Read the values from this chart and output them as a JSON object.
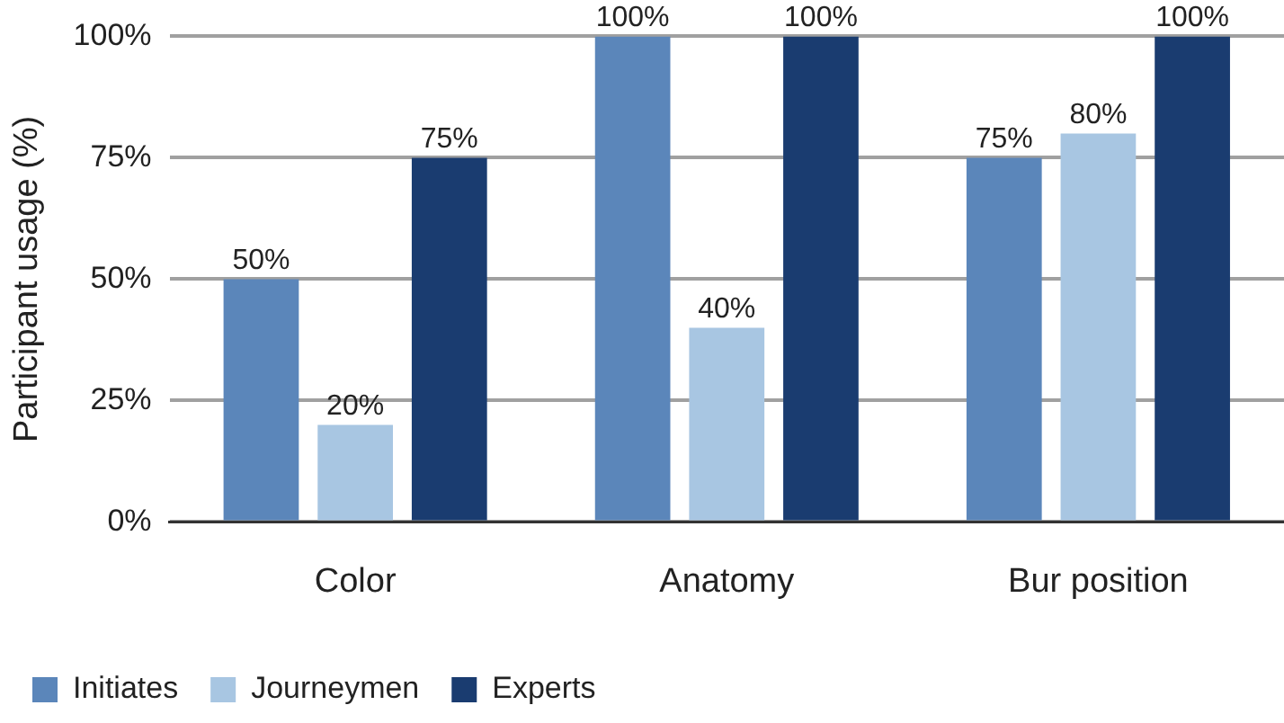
{
  "chart_data": {
    "type": "bar",
    "ylabel": "Participant usage (%)",
    "categories": [
      "Color",
      "Anatomy",
      "Bur position"
    ],
    "series": [
      {
        "name": "Initiates",
        "color": "#5b86ba",
        "values": [
          50,
          100,
          75
        ],
        "value_labels": [
          "50%",
          "100%",
          "75%"
        ]
      },
      {
        "name": "Journeymen",
        "color": "#a8c6e2",
        "values": [
          20,
          40,
          80
        ],
        "value_labels": [
          "20%",
          "40%",
          "80%"
        ]
      },
      {
        "name": "Experts",
        "color": "#1a3c70",
        "values": [
          75,
          100,
          100
        ],
        "value_labels": [
          "75%",
          "100%",
          "100%"
        ]
      }
    ],
    "ylim": [
      0,
      100
    ],
    "yticks": [
      {
        "value": 0,
        "label": "0%"
      },
      {
        "value": 25,
        "label": "25%"
      },
      {
        "value": 50,
        "label": "50%"
      },
      {
        "value": 75,
        "label": "75%"
      },
      {
        "value": 100,
        "label": "100%"
      }
    ],
    "grid": "y",
    "legend": "bottom"
  }
}
